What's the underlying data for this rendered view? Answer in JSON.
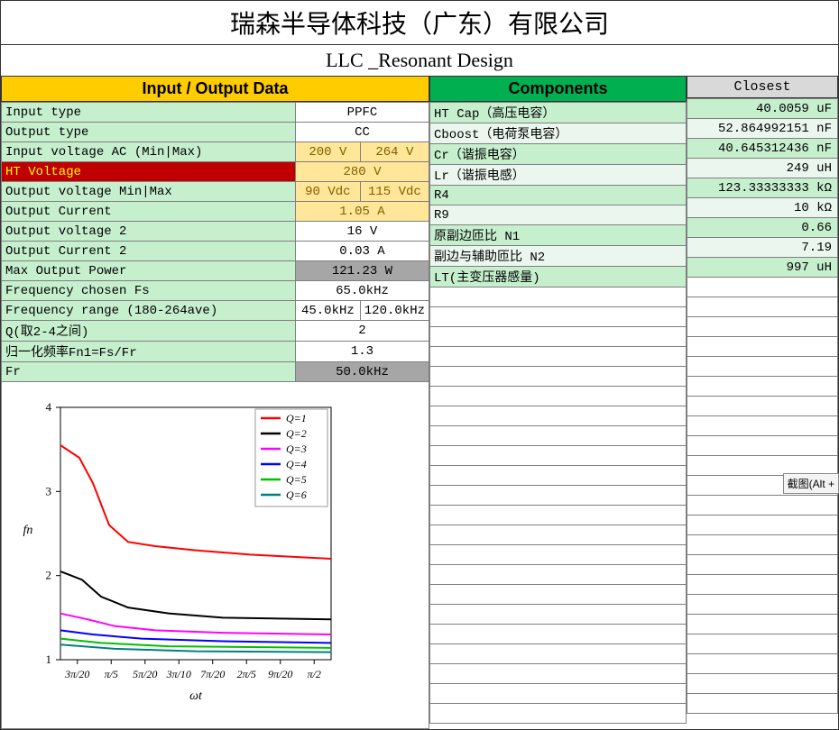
{
  "company": "瑞森半导体科技（广东）有限公司",
  "design_title": "LLC _Resonant Design",
  "headers": {
    "io": "Input / Output Data",
    "comp": "Components",
    "closest": "Closest"
  },
  "io_rows": [
    {
      "label": "Input type",
      "v1": "PPFC",
      "v2": null,
      "style": "val"
    },
    {
      "label": "Output type",
      "v1": "CC",
      "v2": null,
      "style": "val"
    },
    {
      "label": "Input voltage AC (Min|Max)",
      "v1": "200 V",
      "v2": "264 V",
      "style": "val-o"
    },
    {
      "label": "HT Voltage",
      "label_style": "ht-volt",
      "v1": "280 V",
      "v2": null,
      "style": "val-o"
    },
    {
      "label": "Output voltage Min|Max",
      "v1": "90 Vdc",
      "v2": "115 Vdc",
      "style": "val-o"
    },
    {
      "label": "Output Current",
      "v1": "1.05 A",
      "v2": null,
      "style": "val-o"
    },
    {
      "label": "Output voltage 2",
      "v1": "16 V",
      "v2": null,
      "style": "val"
    },
    {
      "label": "Output Current 2",
      "v1": "0.03 A",
      "v2": null,
      "style": "val"
    },
    {
      "label": "Max Output Power",
      "v1": "121.23 W",
      "v2": null,
      "style": "val-g"
    },
    {
      "label": "Frequency chosen Fs",
      "v1": "65.0kHz",
      "v2": null,
      "style": "val"
    },
    {
      "label": "Frequency range (180-264ave)",
      "v1": "45.0kHz",
      "v2": "120.0kHz",
      "style": "val"
    },
    {
      "label": "Q(取2-4之间)",
      "v1": "2",
      "v2": null,
      "style": "val"
    },
    {
      "label": "归一化频率Fn1=Fs/Fr",
      "v1": "1.3",
      "v2": null,
      "style": "val"
    },
    {
      "label": "Fr",
      "v1": "50.0kHz",
      "v2": null,
      "style": "val-g"
    }
  ],
  "comp_rows": [
    {
      "label": "HT Cap（高压电容）",
      "bg": "comp-label",
      "val": "40.0059 uF",
      "vbg": "closest-val"
    },
    {
      "label": "Cboost（电荷泵电容）",
      "bg": "comp-faint",
      "val": "52.864992151 nF",
      "vbg": "closest-faint"
    },
    {
      "label": "Cr（谐振电容）",
      "bg": "comp-label",
      "val": "40.645312436 nF",
      "vbg": "closest-val"
    },
    {
      "label": "Lr（谐振电感）",
      "bg": "comp-faint",
      "val": "249 uH",
      "vbg": "closest-faint"
    },
    {
      "label": "R4",
      "bg": "comp-label",
      "val": "123.33333333 kΩ",
      "vbg": "closest-val"
    },
    {
      "label": "R9",
      "bg": "comp-faint",
      "val": "10 kΩ",
      "vbg": "closest-faint"
    },
    {
      "label": "原副边匝比 N1",
      "bg": "comp-label",
      "val": "0.66",
      "vbg": "closest-val"
    },
    {
      "label": "副边与辅助匝比 N2",
      "bg": "comp-faint",
      "val": "7.19",
      "vbg": "closest-faint"
    },
    {
      "label": "LT(主变压器感量)",
      "bg": "comp-label",
      "val": "997 uH",
      "vbg": "closest-val"
    }
  ],
  "right_empty_rows": 22,
  "chart": {
    "xlabel": "ωt",
    "ylabel": "fn",
    "ymin": 1,
    "ymax": 4,
    "yticks": [
      1,
      2,
      3,
      4
    ],
    "xticks": [
      "3π/20",
      "π/5",
      "5π/20",
      "3π/10",
      "7π/20",
      "2π/5",
      "9π/20",
      "π/2"
    ],
    "legend": [
      {
        "name": "Q=1",
        "color": "#ff0000"
      },
      {
        "name": "Q=2",
        "color": "#000000"
      },
      {
        "name": "Q=3",
        "color": "#ff00ff"
      },
      {
        "name": "Q=4",
        "color": "#0000ff"
      },
      {
        "name": "Q=5",
        "color": "#00c000"
      },
      {
        "name": "Q=6",
        "color": "#008080"
      }
    ],
    "series": {
      "Q1": [
        [
          0,
          3.55
        ],
        [
          0.07,
          3.4
        ],
        [
          0.12,
          3.1
        ],
        [
          0.18,
          2.6
        ],
        [
          0.25,
          2.4
        ],
        [
          0.35,
          2.35
        ],
        [
          0.5,
          2.3
        ],
        [
          0.7,
          2.25
        ],
        [
          1.0,
          2.2
        ]
      ],
      "Q2": [
        [
          0,
          2.05
        ],
        [
          0.08,
          1.95
        ],
        [
          0.15,
          1.75
        ],
        [
          0.25,
          1.62
        ],
        [
          0.4,
          1.55
        ],
        [
          0.6,
          1.5
        ],
        [
          1.0,
          1.48
        ]
      ],
      "Q3": [
        [
          0,
          1.55
        ],
        [
          0.1,
          1.48
        ],
        [
          0.2,
          1.4
        ],
        [
          0.35,
          1.35
        ],
        [
          0.6,
          1.32
        ],
        [
          1.0,
          1.3
        ]
      ],
      "Q4": [
        [
          0,
          1.35
        ],
        [
          0.12,
          1.3
        ],
        [
          0.3,
          1.25
        ],
        [
          0.6,
          1.22
        ],
        [
          1.0,
          1.2
        ]
      ],
      "Q5": [
        [
          0,
          1.25
        ],
        [
          0.15,
          1.2
        ],
        [
          0.4,
          1.16
        ],
        [
          1.0,
          1.14
        ]
      ],
      "Q6": [
        [
          0,
          1.18
        ],
        [
          0.2,
          1.13
        ],
        [
          0.5,
          1.1
        ],
        [
          1.0,
          1.09
        ]
      ]
    }
  },
  "tooltip": "截图(Alt +"
}
